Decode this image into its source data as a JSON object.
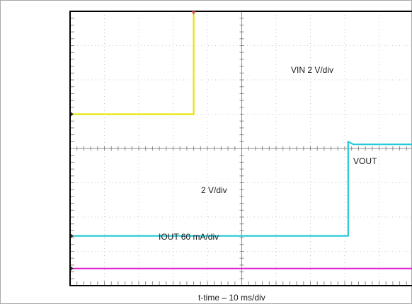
{
  "chart_data": {
    "type": "line",
    "title": "",
    "xlabel": "t-time – 10 ms/div",
    "ylabel": "",
    "grid": true,
    "divisions": {
      "x": 10,
      "y": 8
    },
    "annotations": [
      {
        "id": "vin",
        "text": "VIN 2 V/div"
      },
      {
        "id": "vout",
        "text": "VOUT"
      },
      {
        "id": "vscale",
        "text": "2 V/div"
      },
      {
        "id": "iout",
        "text": "IOUT 60 mA/div"
      }
    ],
    "series": [
      {
        "color": "#e6e600",
        "x": [
          0,
          3.6,
          3.6,
          10
        ],
        "y": [
          1.0,
          1.0,
          4.45,
          4.45
        ]
      },
      {
        "color": "#22c8d8",
        "x": [
          0,
          8.1,
          8.1,
          8.25,
          10
        ],
        "y": [
          -2.55,
          -2.55,
          0.2,
          0.12,
          0.12
        ]
      },
      {
        "color": "#e020d0",
        "x": [
          0,
          10
        ],
        "y": [
          -3.5,
          -3.5
        ]
      }
    ]
  },
  "colors": {
    "grid": "#c8c8c8",
    "frame": "#000000",
    "axis": "#888888",
    "marker": "#e05050"
  }
}
